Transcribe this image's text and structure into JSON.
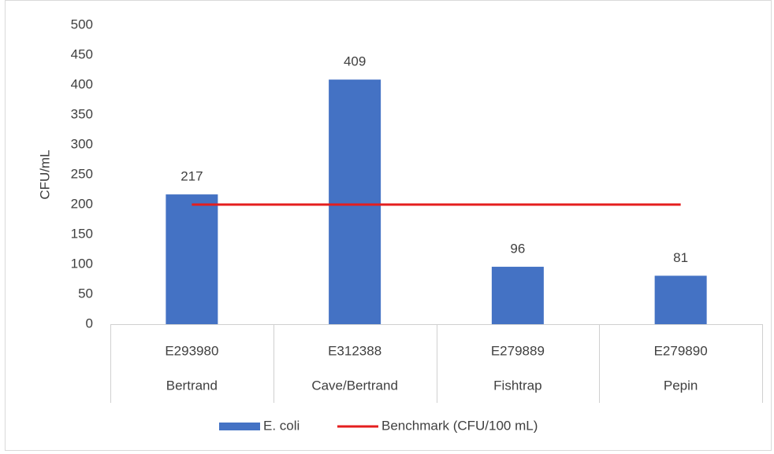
{
  "chart_data": {
    "type": "combo",
    "y_label": "CFU/mL",
    "categories": [
      "E293980",
      "E312388",
      "E279889",
      "E279890"
    ],
    "sites": [
      "Bertrand",
      "Cave/Bertrand",
      "Fishtrap",
      "Pepin"
    ],
    "series": [
      {
        "name": "E. coli",
        "type": "bar",
        "color": "#4472c4",
        "values": [
          217,
          409,
          96,
          81
        ]
      },
      {
        "name": "Benchmark (CFU/100 mL)",
        "type": "line",
        "color": "#e41e1e",
        "values": [
          200,
          200,
          200,
          200
        ]
      }
    ],
    "ylim": [
      0,
      500
    ],
    "yticks": [
      0,
      50,
      100,
      150,
      200,
      250,
      300,
      350,
      400,
      450,
      500
    ],
    "grid": false,
    "legend": "bottom"
  }
}
